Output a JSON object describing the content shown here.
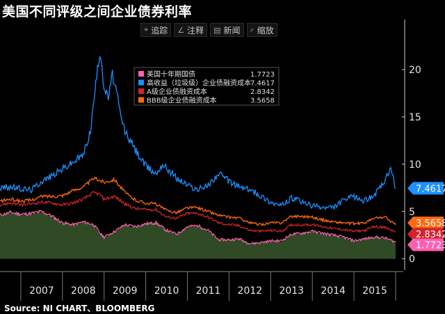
{
  "title": "美国不同评级之间企业债券利率",
  "toolbar": [
    {
      "icon": "crosshair-icon",
      "glyph": "⌖",
      "label": "追踪"
    },
    {
      "icon": "pencil-icon",
      "glyph": "∠",
      "label": "注释"
    },
    {
      "icon": "news-icon",
      "glyph": "▤",
      "label": "新闻"
    },
    {
      "icon": "zoom-icon",
      "glyph": "⌕",
      "label": "缩放"
    }
  ],
  "source": "Source: NI CHART、BLOOMBERG",
  "chart_data": {
    "type": "line",
    "xlim": [
      2006.5,
      2016.05
    ],
    "ylim": [
      -1.2,
      25
    ],
    "x_ticks": [
      "2007",
      "2008",
      "2009",
      "2010",
      "2011",
      "2012",
      "2013",
      "2014",
      "2015"
    ],
    "y_ticks": [
      0,
      5,
      10,
      15,
      20
    ],
    "grid": false,
    "legend": "top-center",
    "series": [
      {
        "name": "美国十年期国债",
        "value_label": "1.7723",
        "color": "#ff5fb0",
        "fill": "#2f4a24",
        "points": [
          [
            2006.5,
            4.6
          ],
          [
            2006.75,
            4.9
          ],
          [
            2007.0,
            4.7
          ],
          [
            2007.25,
            4.8
          ],
          [
            2007.5,
            5.0
          ],
          [
            2007.75,
            4.5
          ],
          [
            2008.0,
            3.8
          ],
          [
            2008.25,
            3.6
          ],
          [
            2008.5,
            3.9
          ],
          [
            2008.75,
            3.6
          ],
          [
            2008.92,
            2.6
          ],
          [
            2009.0,
            2.3
          ],
          [
            2009.25,
            2.9
          ],
          [
            2009.5,
            3.6
          ],
          [
            2009.75,
            3.4
          ],
          [
            2010.0,
            3.7
          ],
          [
            2010.25,
            3.8
          ],
          [
            2010.5,
            3.0
          ],
          [
            2010.75,
            2.6
          ],
          [
            2011.0,
            3.4
          ],
          [
            2011.25,
            3.5
          ],
          [
            2011.5,
            3.0
          ],
          [
            2011.75,
            2.0
          ],
          [
            2012.0,
            2.0
          ],
          [
            2012.25,
            2.1
          ],
          [
            2012.5,
            1.6
          ],
          [
            2012.75,
            1.7
          ],
          [
            2013.0,
            1.9
          ],
          [
            2013.25,
            1.9
          ],
          [
            2013.5,
            2.6
          ],
          [
            2013.75,
            2.7
          ],
          [
            2014.0,
            2.9
          ],
          [
            2014.25,
            2.7
          ],
          [
            2014.5,
            2.5
          ],
          [
            2014.75,
            2.3
          ],
          [
            2015.0,
            1.9
          ],
          [
            2015.25,
            2.1
          ],
          [
            2015.5,
            2.3
          ],
          [
            2015.75,
            2.2
          ],
          [
            2016.0,
            1.77
          ]
        ]
      },
      {
        "name": "高收益（垃圾级）企业债融资成本",
        "value_label": "7.4617",
        "color": "#1e90ff",
        "points": [
          [
            2006.5,
            7.5
          ],
          [
            2006.75,
            7.6
          ],
          [
            2007.0,
            7.4
          ],
          [
            2007.25,
            7.3
          ],
          [
            2007.5,
            8.2
          ],
          [
            2007.75,
            8.8
          ],
          [
            2008.0,
            9.5
          ],
          [
            2008.25,
            10.2
          ],
          [
            2008.5,
            11.0
          ],
          [
            2008.67,
            13.5
          ],
          [
            2008.8,
            18.5
          ],
          [
            2008.9,
            22.0
          ],
          [
            2008.95,
            20.5
          ],
          [
            2009.0,
            18.0
          ],
          [
            2009.1,
            17.0
          ],
          [
            2009.2,
            19.5
          ],
          [
            2009.28,
            18.0
          ],
          [
            2009.4,
            15.0
          ],
          [
            2009.5,
            13.5
          ],
          [
            2009.75,
            11.5
          ],
          [
            2010.0,
            9.8
          ],
          [
            2010.25,
            9.0
          ],
          [
            2010.4,
            10.0
          ],
          [
            2010.6,
            9.2
          ],
          [
            2010.75,
            8.5
          ],
          [
            2011.0,
            7.8
          ],
          [
            2011.25,
            7.3
          ],
          [
            2011.5,
            7.8
          ],
          [
            2011.75,
            9.0
          ],
          [
            2012.0,
            8.2
          ],
          [
            2012.25,
            7.6
          ],
          [
            2012.5,
            7.3
          ],
          [
            2012.75,
            6.7
          ],
          [
            2013.0,
            6.0
          ],
          [
            2013.25,
            5.6
          ],
          [
            2013.5,
            6.4
          ],
          [
            2013.75,
            6.0
          ],
          [
            2014.0,
            5.6
          ],
          [
            2014.25,
            5.4
          ],
          [
            2014.5,
            5.4
          ],
          [
            2014.75,
            6.2
          ],
          [
            2015.0,
            6.6
          ],
          [
            2015.25,
            6.1
          ],
          [
            2015.5,
            6.8
          ],
          [
            2015.75,
            8.2
          ],
          [
            2015.88,
            9.6
          ],
          [
            2016.0,
            7.46
          ]
        ]
      },
      {
        "name": "A级企业债融资成本",
        "value_label": "2.8342",
        "color": "#d2232a",
        "points": [
          [
            2006.5,
            5.7
          ],
          [
            2006.75,
            5.9
          ],
          [
            2007.0,
            5.7
          ],
          [
            2007.25,
            5.8
          ],
          [
            2007.5,
            6.0
          ],
          [
            2007.75,
            5.9
          ],
          [
            2008.0,
            5.7
          ],
          [
            2008.25,
            5.9
          ],
          [
            2008.5,
            6.3
          ],
          [
            2008.75,
            7.0
          ],
          [
            2008.9,
            6.8
          ],
          [
            2009.0,
            6.3
          ],
          [
            2009.25,
            6.6
          ],
          [
            2009.5,
            5.8
          ],
          [
            2009.75,
            5.3
          ],
          [
            2010.0,
            5.2
          ],
          [
            2010.25,
            5.2
          ],
          [
            2010.5,
            4.4
          ],
          [
            2010.75,
            4.3
          ],
          [
            2011.0,
            4.8
          ],
          [
            2011.25,
            4.8
          ],
          [
            2011.5,
            4.4
          ],
          [
            2011.75,
            3.8
          ],
          [
            2012.0,
            3.6
          ],
          [
            2012.25,
            3.5
          ],
          [
            2012.5,
            3.0
          ],
          [
            2012.75,
            2.9
          ],
          [
            2013.0,
            3.0
          ],
          [
            2013.25,
            2.9
          ],
          [
            2013.5,
            3.6
          ],
          [
            2013.75,
            3.6
          ],
          [
            2014.0,
            3.6
          ],
          [
            2014.25,
            3.4
          ],
          [
            2014.5,
            3.2
          ],
          [
            2014.75,
            3.1
          ],
          [
            2015.0,
            2.9
          ],
          [
            2015.25,
            3.0
          ],
          [
            2015.5,
            3.4
          ],
          [
            2015.75,
            3.3
          ],
          [
            2016.0,
            2.83
          ]
        ]
      },
      {
        "name": "BBB级企业债融资成本",
        "value_label": "3.5658",
        "color": "#ff6a10",
        "points": [
          [
            2006.5,
            6.1
          ],
          [
            2006.75,
            6.3
          ],
          [
            2007.0,
            6.1
          ],
          [
            2007.25,
            6.2
          ],
          [
            2007.5,
            6.6
          ],
          [
            2007.75,
            6.6
          ],
          [
            2008.0,
            6.7
          ],
          [
            2008.25,
            7.2
          ],
          [
            2008.5,
            7.6
          ],
          [
            2008.75,
            8.5
          ],
          [
            2008.9,
            8.3
          ],
          [
            2009.0,
            8.1
          ],
          [
            2009.25,
            8.4
          ],
          [
            2009.5,
            7.0
          ],
          [
            2009.75,
            6.2
          ],
          [
            2010.0,
            5.9
          ],
          [
            2010.25,
            5.8
          ],
          [
            2010.5,
            5.1
          ],
          [
            2010.75,
            4.9
          ],
          [
            2011.0,
            5.4
          ],
          [
            2011.25,
            5.4
          ],
          [
            2011.5,
            5.0
          ],
          [
            2011.75,
            4.6
          ],
          [
            2012.0,
            4.4
          ],
          [
            2012.25,
            4.3
          ],
          [
            2012.5,
            3.8
          ],
          [
            2012.75,
            3.6
          ],
          [
            2013.0,
            3.8
          ],
          [
            2013.25,
            3.8
          ],
          [
            2013.5,
            4.5
          ],
          [
            2013.75,
            4.5
          ],
          [
            2014.0,
            4.4
          ],
          [
            2014.25,
            4.1
          ],
          [
            2014.5,
            3.9
          ],
          [
            2014.75,
            3.8
          ],
          [
            2015.0,
            3.7
          ],
          [
            2015.25,
            3.8
          ],
          [
            2015.5,
            4.3
          ],
          [
            2015.75,
            4.4
          ],
          [
            2016.0,
            3.57
          ]
        ]
      }
    ]
  }
}
